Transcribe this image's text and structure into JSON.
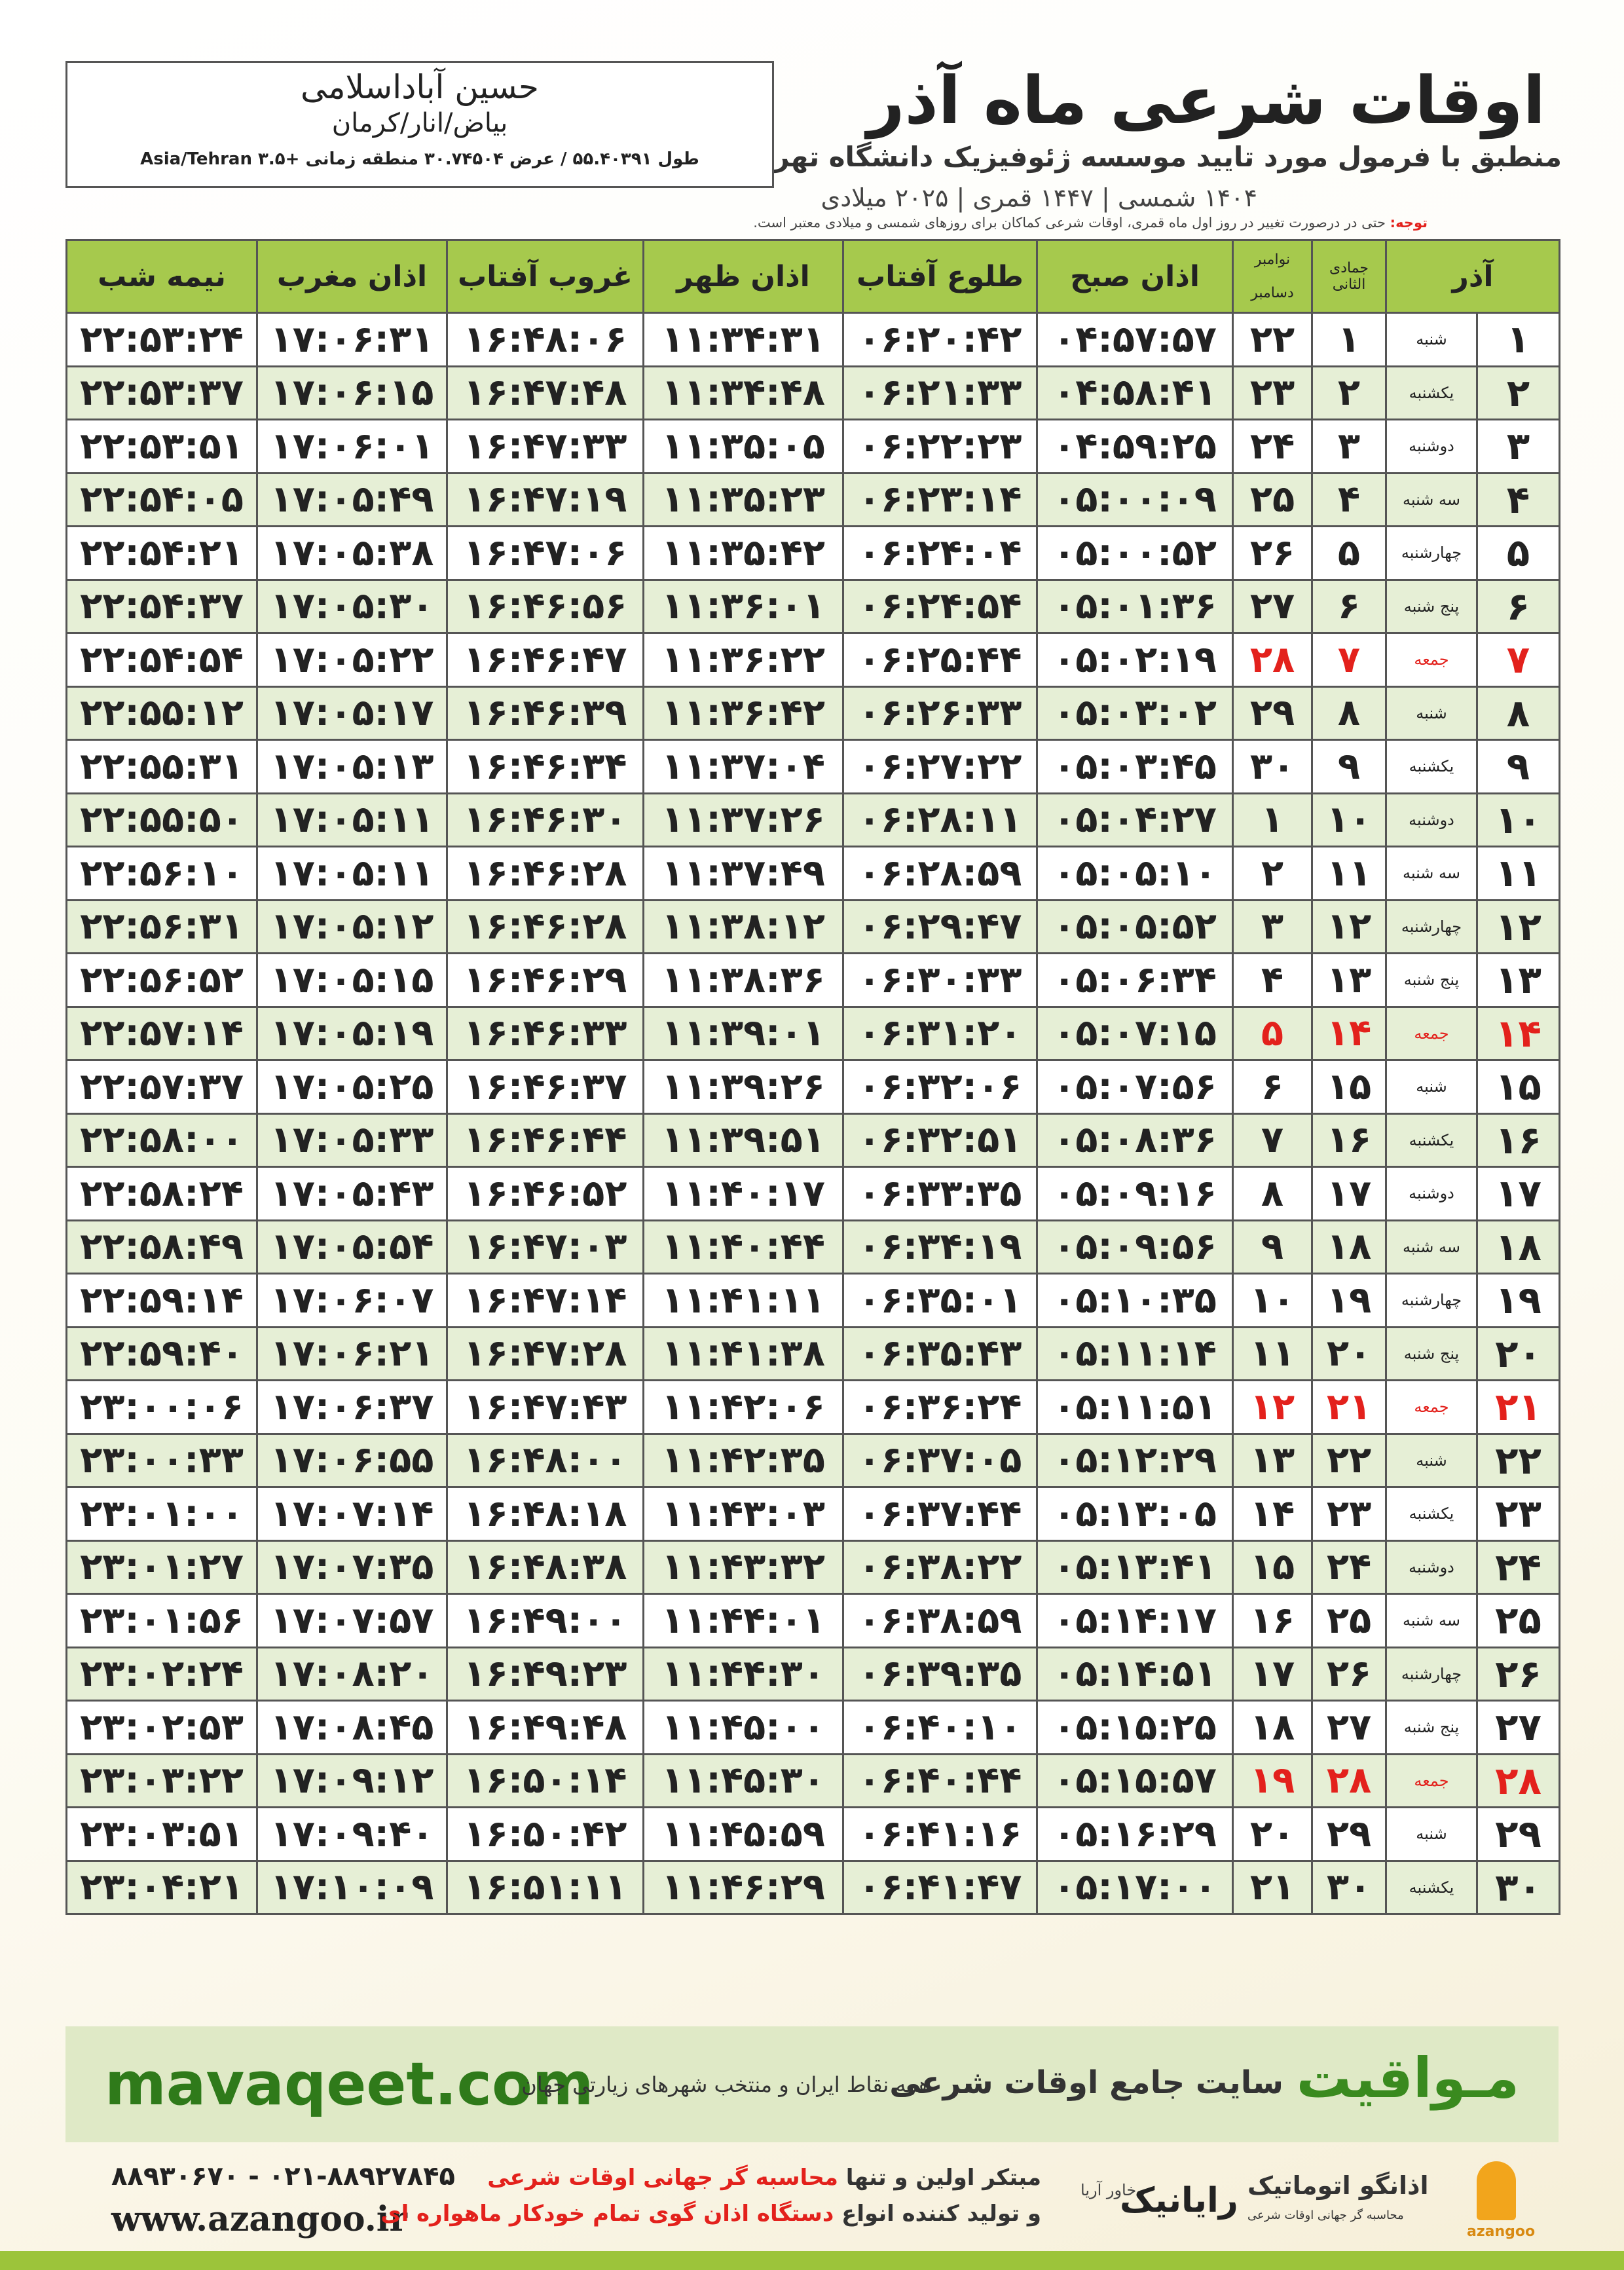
{
  "header": {
    "title": "اوقات شرعی ماه آذر",
    "subtitle": "منطبق با فرمول مورد تایید موسسه ژئوفیزیک دانشگاه تهران",
    "dates": "۱۴۰۴ شمسی | ۱۴۴۷ قمری | ۲۰۲۵ میلادی"
  },
  "location": {
    "name": "حسین آباداسلامی",
    "region": "بیاض/انار/کرمان",
    "coords": "طول ۵۵.۴۰۳۹۱ / عرض ۳۰.۷۴۵۰۴ منطقه زمانی +۳.۵ Asia/Tehran"
  },
  "note": {
    "label": "توجه:",
    "text": "حتی در درصورت تغییر در روز اول ماه قمری، اوقات شرعی کماکان برای روزهای شمسی و میلادی معتبر است."
  },
  "table": {
    "headers": {
      "azar": "آذر",
      "hijri": "جمادی الثانی",
      "gregorian_top": "نوامبر",
      "gregorian_bottom": "دسامبر",
      "fajr": "اذان صبح",
      "sunrise": "طلوع آفتاب",
      "dhuhr": "اذان ظهر",
      "sunset": "غروب آفتاب",
      "maghrib": "اذان مغرب",
      "midnight": "نیمه شب"
    },
    "rows": [
      {
        "cells": [
          "۱",
          "شنبه",
          "۱",
          "۲۲",
          "۰۴:۵۷:۵۷",
          "۰۶:۲۰:۴۲",
          "۱۱:۳۴:۳۱",
          "۱۶:۴۸:۰۶",
          "۱۷:۰۶:۳۱",
          "۲۲:۵۳:۲۴"
        ]
      },
      {
        "cells": [
          "۲",
          "یکشنبه",
          "۲",
          "۲۳",
          "۰۴:۵۸:۴۱",
          "۰۶:۲۱:۳۳",
          "۱۱:۳۴:۴۸",
          "۱۶:۴۷:۴۸",
          "۱۷:۰۶:۱۵",
          "۲۲:۵۳:۳۷"
        ]
      },
      {
        "cells": [
          "۳",
          "دوشنبه",
          "۳",
          "۲۴",
          "۰۴:۵۹:۲۵",
          "۰۶:۲۲:۲۳",
          "۱۱:۳۵:۰۵",
          "۱۶:۴۷:۳۳",
          "۱۷:۰۶:۰۱",
          "۲۲:۵۳:۵۱"
        ]
      },
      {
        "cells": [
          "۴",
          "سه شنبه",
          "۴",
          "۲۵",
          "۰۵:۰۰:۰۹",
          "۰۶:۲۳:۱۴",
          "۱۱:۳۵:۲۳",
          "۱۶:۴۷:۱۹",
          "۱۷:۰۵:۴۹",
          "۲۲:۵۴:۰۵"
        ]
      },
      {
        "cells": [
          "۵",
          "چهارشنبه",
          "۵",
          "۲۶",
          "۰۵:۰۰:۵۲",
          "۰۶:۲۴:۰۴",
          "۱۱:۳۵:۴۲",
          "۱۶:۴۷:۰۶",
          "۱۷:۰۵:۳۸",
          "۲۲:۵۴:۲۱"
        ]
      },
      {
        "cells": [
          "۶",
          "پنج شنبه",
          "۶",
          "۲۷",
          "۰۵:۰۱:۳۶",
          "۰۶:۲۴:۵۴",
          "۱۱:۳۶:۰۱",
          "۱۶:۴۶:۵۶",
          "۱۷:۰۵:۳۰",
          "۲۲:۵۴:۳۷"
        ]
      },
      {
        "cells": [
          "۷",
          "جمعه",
          "۷",
          "۲۸",
          "۰۵:۰۲:۱۹",
          "۰۶:۲۵:۴۴",
          "۱۱:۳۶:۲۲",
          "۱۶:۴۶:۴۷",
          "۱۷:۰۵:۲۲",
          "۲۲:۵۴:۵۴"
        ],
        "color": "#e3211c"
      },
      {
        "cells": [
          "۸",
          "شنبه",
          "۸",
          "۲۹",
          "۰۵:۰۳:۰۲",
          "۰۶:۲۶:۳۳",
          "۱۱:۳۶:۴۲",
          "۱۶:۴۶:۳۹",
          "۱۷:۰۵:۱۷",
          "۲۲:۵۵:۱۲"
        ]
      },
      {
        "cells": [
          "۹",
          "یکشنبه",
          "۹",
          "۳۰",
          "۰۵:۰۳:۴۵",
          "۰۶:۲۷:۲۲",
          "۱۱:۳۷:۰۴",
          "۱۶:۴۶:۳۴",
          "۱۷:۰۵:۱۳",
          "۲۲:۵۵:۳۱"
        ]
      },
      {
        "cells": [
          "۱۰",
          "دوشنبه",
          "۱۰",
          "۱",
          "۰۵:۰۴:۲۷",
          "۰۶:۲۸:۱۱",
          "۱۱:۳۷:۲۶",
          "۱۶:۴۶:۳۰",
          "۱۷:۰۵:۱۱",
          "۲۲:۵۵:۵۰"
        ]
      },
      {
        "cells": [
          "۱۱",
          "سه شنبه",
          "۱۱",
          "۲",
          "۰۵:۰۵:۱۰",
          "۰۶:۲۸:۵۹",
          "۱۱:۳۷:۴۹",
          "۱۶:۴۶:۲۸",
          "۱۷:۰۵:۱۱",
          "۲۲:۵۶:۱۰"
        ]
      },
      {
        "cells": [
          "۱۲",
          "چهارشنبه",
          "۱۲",
          "۳",
          "۰۵:۰۵:۵۲",
          "۰۶:۲۹:۴۷",
          "۱۱:۳۸:۱۲",
          "۱۶:۴۶:۲۸",
          "۱۷:۰۵:۱۲",
          "۲۲:۵۶:۳۱"
        ]
      },
      {
        "cells": [
          "۱۳",
          "پنج شنبه",
          "۱۳",
          "۴",
          "۰۵:۰۶:۳۴",
          "۰۶:۳۰:۳۳",
          "۱۱:۳۸:۳۶",
          "۱۶:۴۶:۲۹",
          "۱۷:۰۵:۱۵",
          "۲۲:۵۶:۵۲"
        ]
      },
      {
        "cells": [
          "۱۴",
          "جمعه",
          "۱۴",
          "۵",
          "۰۵:۰۷:۱۵",
          "۰۶:۳۱:۲۰",
          "۱۱:۳۹:۰۱",
          "۱۶:۴۶:۳۳",
          "۱۷:۰۵:۱۹",
          "۲۲:۵۷:۱۴"
        ],
        "color": "#e3211c"
      },
      {
        "cells": [
          "۱۵",
          "شنبه",
          "۱۵",
          "۶",
          "۰۵:۰۷:۵۶",
          "۰۶:۳۲:۰۶",
          "۱۱:۳۹:۲۶",
          "۱۶:۴۶:۳۷",
          "۱۷:۰۵:۲۵",
          "۲۲:۵۷:۳۷"
        ]
      },
      {
        "cells": [
          "۱۶",
          "یکشنبه",
          "۱۶",
          "۷",
          "۰۵:۰۸:۳۶",
          "۰۶:۳۲:۵۱",
          "۱۱:۳۹:۵۱",
          "۱۶:۴۶:۴۴",
          "۱۷:۰۵:۳۳",
          "۲۲:۵۸:۰۰"
        ]
      },
      {
        "cells": [
          "۱۷",
          "دوشنبه",
          "۱۷",
          "۸",
          "۰۵:۰۹:۱۶",
          "۰۶:۳۳:۳۵",
          "۱۱:۴۰:۱۷",
          "۱۶:۴۶:۵۲",
          "۱۷:۰۵:۴۳",
          "۲۲:۵۸:۲۴"
        ]
      },
      {
        "cells": [
          "۱۸",
          "سه شنبه",
          "۱۸",
          "۹",
          "۰۵:۰۹:۵۶",
          "۰۶:۳۴:۱۹",
          "۱۱:۴۰:۴۴",
          "۱۶:۴۷:۰۳",
          "۱۷:۰۵:۵۴",
          "۲۲:۵۸:۴۹"
        ]
      },
      {
        "cells": [
          "۱۹",
          "چهارشنبه",
          "۱۹",
          "۱۰",
          "۰۵:۱۰:۳۵",
          "۰۶:۳۵:۰۱",
          "۱۱:۴۱:۱۱",
          "۱۶:۴۷:۱۴",
          "۱۷:۰۶:۰۷",
          "۲۲:۵۹:۱۴"
        ]
      },
      {
        "cells": [
          "۲۰",
          "پنج شنبه",
          "۲۰",
          "۱۱",
          "۰۵:۱۱:۱۴",
          "۰۶:۳۵:۴۳",
          "۱۱:۴۱:۳۸",
          "۱۶:۴۷:۲۸",
          "۱۷:۰۶:۲۱",
          "۲۲:۵۹:۴۰"
        ]
      },
      {
        "cells": [
          "۲۱",
          "جمعه",
          "۲۱",
          "۱۲",
          "۰۵:۱۱:۵۱",
          "۰۶:۳۶:۲۴",
          "۱۱:۴۲:۰۶",
          "۱۶:۴۷:۴۳",
          "۱۷:۰۶:۳۷",
          "۲۳:۰۰:۰۶"
        ],
        "color": "#e3211c"
      },
      {
        "cells": [
          "۲۲",
          "شنبه",
          "۲۲",
          "۱۳",
          "۰۵:۱۲:۲۹",
          "۰۶:۳۷:۰۵",
          "۱۱:۴۲:۳۵",
          "۱۶:۴۸:۰۰",
          "۱۷:۰۶:۵۵",
          "۲۳:۰۰:۳۳"
        ]
      },
      {
        "cells": [
          "۲۳",
          "یکشنبه",
          "۲۳",
          "۱۴",
          "۰۵:۱۳:۰۵",
          "۰۶:۳۷:۴۴",
          "۱۱:۴۳:۰۳",
          "۱۶:۴۸:۱۸",
          "۱۷:۰۷:۱۴",
          "۲۳:۰۱:۰۰"
        ]
      },
      {
        "cells": [
          "۲۴",
          "دوشنبه",
          "۲۴",
          "۱۵",
          "۰۵:۱۳:۴۱",
          "۰۶:۳۸:۲۲",
          "۱۱:۴۳:۳۲",
          "۱۶:۴۸:۳۸",
          "۱۷:۰۷:۳۵",
          "۲۳:۰۱:۲۷"
        ]
      },
      {
        "cells": [
          "۲۵",
          "سه شنبه",
          "۲۵",
          "۱۶",
          "۰۵:۱۴:۱۷",
          "۰۶:۳۸:۵۹",
          "۱۱:۴۴:۰۱",
          "۱۶:۴۹:۰۰",
          "۱۷:۰۷:۵۷",
          "۲۳:۰۱:۵۶"
        ]
      },
      {
        "cells": [
          "۲۶",
          "چهارشنبه",
          "۲۶",
          "۱۷",
          "۰۵:۱۴:۵۱",
          "۰۶:۳۹:۳۵",
          "۱۱:۴۴:۳۰",
          "۱۶:۴۹:۲۳",
          "۱۷:۰۸:۲۰",
          "۲۳:۰۲:۲۴"
        ]
      },
      {
        "cells": [
          "۲۷",
          "پنج شنبه",
          "۲۷",
          "۱۸",
          "۰۵:۱۵:۲۵",
          "۰۶:۴۰:۱۰",
          "۱۱:۴۵:۰۰",
          "۱۶:۴۹:۴۸",
          "۱۷:۰۸:۴۵",
          "۲۳:۰۲:۵۳"
        ]
      },
      {
        "cells": [
          "۲۸",
          "جمعه",
          "۲۸",
          "۱۹",
          "۰۵:۱۵:۵۷",
          "۰۶:۴۰:۴۴",
          "۱۱:۴۵:۳۰",
          "۱۶:۵۰:۱۴",
          "۱۷:۰۹:۱۲",
          "۲۳:۰۳:۲۲"
        ],
        "color": "#e3211c"
      },
      {
        "cells": [
          "۲۹",
          "شنبه",
          "۲۹",
          "۲۰",
          "۰۵:۱۶:۲۹",
          "۰۶:۴۱:۱۶",
          "۱۱:۴۵:۵۹",
          "۱۶:۵۰:۴۲",
          "۱۷:۰۹:۴۰",
          "۲۳:۰۳:۵۱"
        ]
      },
      {
        "cells": [
          "۳۰",
          "یکشنبه",
          "۳۰",
          "۲۱",
          "۰۵:۱۷:۰۰",
          "۰۶:۴۱:۴۷",
          "۱۱:۴۶:۲۹",
          "۱۶:۵۱:۱۱",
          "۱۷:۱۰:۰۹",
          "۲۳:۰۴:۲۱"
        ]
      }
    ]
  },
  "banner": {
    "url": "mavaqeet.com",
    "brand": "مـواقیت",
    "slogan": "سایت جامع اوقات شرعی",
    "tagline": "همه نقاط ایران و منتخب شهرهای زیارتی جهان"
  },
  "footer": {
    "phone": "۰۲۱-۸۸۹۲۷۸۴۵ - ۸۸۹۳۰۶۷۰",
    "website": "www.azangoo.ir",
    "line1_start": "مبتکر اولین و تنها",
    "line1_red": "محاسبه گر جهانی اوقات شرعی",
    "line2_start": "و تولید کننده انواع",
    "line2_red": "دستگاه اذان گوی تمام خودکار ماهواره ای",
    "logo1": "رایانیک",
    "logo2": "خاور آریا",
    "logo3": "اذانگو اتوماتیک",
    "logo3_sub": "محاسبه گر جهانی اوقات شرعی",
    "logo4": "azangoo"
  }
}
